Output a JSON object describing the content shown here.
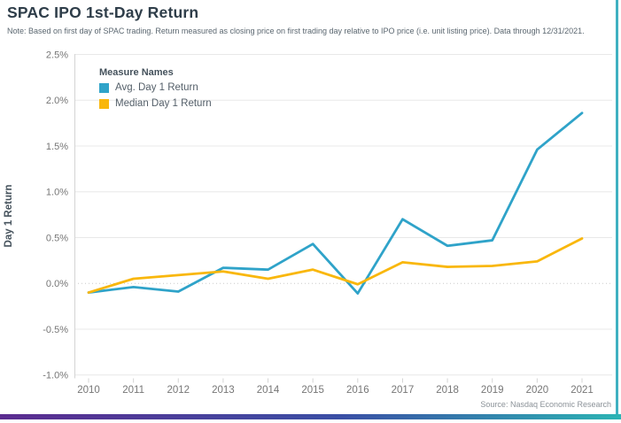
{
  "header": {
    "title": "SPAC IPO 1st-Day Return",
    "note": "Note: Based on first day of SPAC trading. Return measured as closing price on first trading day relative to IPO price (i.e. unit listing price). Data through 12/31/2021."
  },
  "legend": {
    "title": "Measure Names",
    "items": [
      {
        "label": "Avg. Day 1 Return",
        "color": "#2fa3c9"
      },
      {
        "label": "Median Day 1 Return",
        "color": "#f9b70c"
      }
    ]
  },
  "source": "Source: Nasdaq Economic Research",
  "colors": {
    "avg_line": "#2fa3c9",
    "median_line": "#f9b70c",
    "right_border": "#3fb1c1",
    "bottom_bar_start": "#5b2c8f",
    "bottom_bar_mid": "#3a4fa5",
    "bottom_bar_end": "#2cb4b4",
    "gridline": "#e8e8e8",
    "zero_line": "#c9c9c9",
    "axis_line": "#d4d4d4",
    "tick_label": "#767676"
  },
  "chart_data": {
    "type": "line",
    "title": "SPAC IPO 1st-Day Return",
    "categories": [
      "2010",
      "2011",
      "2012",
      "2013",
      "2014",
      "2015",
      "2016",
      "2017",
      "2018",
      "2019",
      "2020",
      "2021"
    ],
    "series": [
      {
        "name": "Avg. Day 1 Return",
        "color": "#2fa3c9",
        "values": [
          -0.1,
          -0.04,
          -0.09,
          0.17,
          0.15,
          0.43,
          -0.11,
          0.7,
          0.41,
          0.47,
          1.46,
          1.86
        ]
      },
      {
        "name": "Median Day 1 Return",
        "color": "#f9b70c",
        "values": [
          -0.1,
          0.05,
          0.09,
          0.13,
          0.05,
          0.15,
          -0.01,
          0.23,
          0.18,
          0.19,
          0.24,
          0.49
        ]
      }
    ],
    "xlabel": "",
    "ylabel": "Day 1 Return",
    "ylim": [
      -1.0,
      2.5
    ],
    "yticks": [
      {
        "value": 2.5,
        "label": "2.5%"
      },
      {
        "value": 2.0,
        "label": "2.0%"
      },
      {
        "value": 1.5,
        "label": "1.5%"
      },
      {
        "value": 1.0,
        "label": "1.0%"
      },
      {
        "value": 0.5,
        "label": "0.5%"
      },
      {
        "value": 0.0,
        "label": "0.0%"
      },
      {
        "value": -0.5,
        "label": "-0.5%"
      },
      {
        "value": -1.0,
        "label": "-1.0%"
      }
    ],
    "grid": true,
    "legend_position": "top-left-inside"
  }
}
